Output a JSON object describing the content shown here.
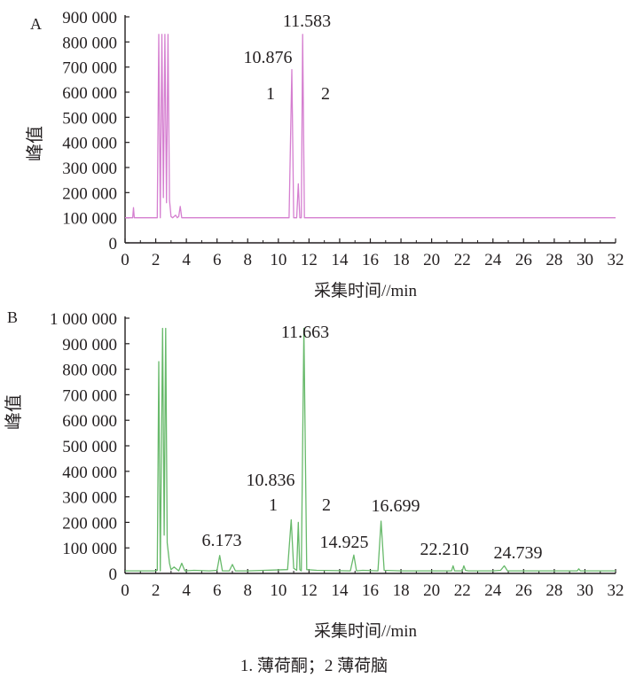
{
  "chart_data": [
    {
      "type": "line",
      "panel_label": "A",
      "xlabel": "采集时间//min",
      "ylabel": "峰值",
      "xlim": [
        0,
        32
      ],
      "ylim": [
        0,
        900000
      ],
      "x_ticks": [
        "0",
        "2",
        "4",
        "6",
        "8",
        "10",
        "12",
        "14",
        "16",
        "18",
        "20",
        "22",
        "24",
        "26",
        "28",
        "30",
        "32"
      ],
      "y_ticks": [
        "0",
        "100 000",
        "200 000",
        "300 000",
        "400 000",
        "500 000",
        "600 000",
        "700 000",
        "800 000",
        "900 000"
      ],
      "line_color": "#d57fd0",
      "baseline": 100000,
      "series": [
        {
          "x": [
            0,
            0.5,
            0.55,
            0.6,
            2.1,
            2.2,
            2.3,
            2.4,
            2.5,
            2.6,
            2.7,
            2.8,
            2.9,
            3.0,
            3.1,
            3.3,
            3.4,
            3.5,
            3.6,
            3.7,
            3.8,
            10.7,
            10.876,
            11.0,
            11.2,
            11.3,
            11.4,
            11.5,
            11.583,
            11.7,
            11.9,
            32
          ],
          "y": [
            100000,
            100000,
            140000,
            100000,
            100000,
            830000,
            100000,
            830000,
            180000,
            830000,
            160000,
            830000,
            170000,
            105000,
            100000,
            110000,
            100000,
            105000,
            145000,
            100000,
            100000,
            100000,
            690000,
            100000,
            100000,
            235000,
            100000,
            100000,
            830000,
            100000,
            100000,
            100000
          ]
        }
      ],
      "peaks": [
        {
          "rt": "10.876",
          "id": "1"
        },
        {
          "rt": "11.583",
          "id": "2"
        }
      ]
    },
    {
      "type": "line",
      "panel_label": "B",
      "xlabel": "采集时间//min",
      "ylabel": "峰值",
      "xlim": [
        0,
        32
      ],
      "ylim": [
        0,
        1000000
      ],
      "x_ticks": [
        "0",
        "2",
        "4",
        "6",
        "8",
        "10",
        "12",
        "14",
        "16",
        "18",
        "20",
        "22",
        "24",
        "26",
        "28",
        "30",
        "32"
      ],
      "y_ticks": [
        "0",
        "100 000",
        "200 000",
        "300 000",
        "400 000",
        "500 000",
        "600 000",
        "700 000",
        "800 000",
        "900 000",
        "1 000 000"
      ],
      "line_color": "#67b96a",
      "baseline": 10000,
      "series": [
        {
          "x": [
            0,
            0.5,
            1.9,
            2.1,
            2.2,
            2.3,
            2.45,
            2.55,
            2.65,
            2.75,
            2.9,
            3.0,
            3.2,
            3.5,
            3.7,
            3.9,
            4.5,
            5.5,
            6.0,
            6.173,
            6.35,
            6.8,
            7.0,
            7.2,
            8.0,
            10.6,
            10.836,
            11.0,
            11.2,
            11.3,
            11.4,
            11.5,
            11.663,
            11.85,
            12.5,
            14.7,
            14.925,
            15.1,
            15.5,
            16.5,
            16.699,
            16.9,
            18.0,
            20.5,
            21.3,
            21.4,
            21.5,
            22.0,
            22.1,
            22.21,
            22.4,
            24.0,
            24.5,
            24.739,
            24.95,
            26.0,
            29.5,
            29.6,
            29.7,
            30.5,
            32
          ],
          "y": [
            10000,
            10000,
            10000,
            12000,
            830000,
            10000,
            960000,
            150000,
            960000,
            120000,
            40000,
            15000,
            25000,
            10000,
            40000,
            10000,
            12000,
            10000,
            12000,
            70000,
            10000,
            10000,
            35000,
            10000,
            10000,
            15000,
            210000,
            20000,
            12000,
            200000,
            15000,
            10000,
            960000,
            15000,
            12000,
            10000,
            72000,
            10000,
            12000,
            10000,
            205000,
            12000,
            10000,
            10000,
            10000,
            30000,
            10000,
            10000,
            30000,
            12000,
            10000,
            10000,
            12000,
            30000,
            10000,
            10000,
            10000,
            18000,
            10000,
            10000,
            10000
          ]
        }
      ],
      "peaks": [
        {
          "rt": "6.173",
          "id": ""
        },
        {
          "rt": "10.836",
          "id": "1"
        },
        {
          "rt": "11.663",
          "id": "2"
        },
        {
          "rt": "14.925",
          "id": ""
        },
        {
          "rt": "16.699",
          "id": ""
        },
        {
          "rt": "22.210",
          "id": ""
        },
        {
          "rt": "24.739",
          "id": ""
        }
      ]
    }
  ],
  "caption": "1. 薄荷酮；2 薄荷脑"
}
